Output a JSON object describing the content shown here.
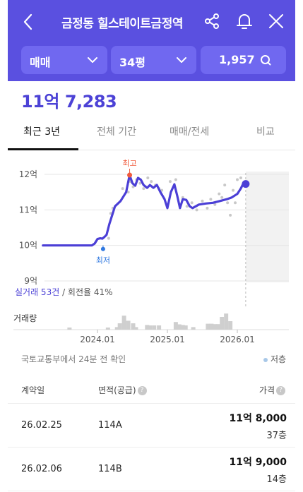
{
  "header": {
    "title": "금정동 힐스테이트금정역",
    "filters": {
      "trade_type": "매매",
      "size": "34평",
      "listings": "1,957"
    }
  },
  "price": "11억 7,283",
  "tabs": [
    "최근 3년",
    "전체 기간",
    "매매/전세",
    "비교"
  ],
  "chart_data": {
    "type": "line",
    "y_ticks": [
      "12억",
      "11억",
      "10억",
      "9억"
    ],
    "ylim": [
      9,
      12.3
    ],
    "x_ticks": [
      "2024.01",
      "2025.01",
      "2026.01"
    ],
    "series": [
      {
        "x": [
          2023.22,
          2023.5,
          2023.75,
          2023.92,
          2023.96,
          2024.0,
          2024.04,
          2024.07,
          2024.1,
          2024.13,
          2024.17,
          2024.25,
          2024.33,
          2024.41,
          2024.46,
          2024.5,
          2024.54,
          2024.58,
          2024.62,
          2024.66,
          2024.71,
          2024.75,
          2024.8,
          2024.85,
          2024.9,
          2024.96,
          2025.0,
          2025.05,
          2025.1,
          2025.14,
          2025.18,
          2025.22,
          2025.27,
          2025.32,
          2025.36,
          2025.45,
          2025.55,
          2025.65,
          2025.75,
          2025.85,
          2025.92,
          2026.0,
          2026.05,
          2026.08,
          2026.12
        ],
        "values": [
          10.0,
          10.0,
          10.0,
          10.0,
          10.05,
          10.18,
          10.2,
          10.19,
          10.24,
          10.3,
          10.6,
          11.1,
          11.25,
          11.5,
          11.98,
          11.75,
          11.68,
          11.9,
          11.85,
          11.7,
          11.62,
          11.7,
          11.62,
          11.7,
          11.5,
          11.3,
          11.05,
          11.5,
          11.72,
          11.4,
          11.05,
          11.3,
          11.28,
          11.1,
          11.05,
          11.15,
          11.18,
          11.2,
          11.25,
          11.3,
          11.35,
          11.45,
          11.6,
          11.72,
          11.73
        ]
      }
    ],
    "scatter": {
      "x": [
        2024.16,
        2024.19,
        2024.22,
        2024.36,
        2024.44,
        2024.47,
        2024.51,
        2024.56,
        2024.61,
        2024.66,
        2024.72,
        2024.77,
        2024.83,
        2024.88,
        2024.92,
        2025.04,
        2025.12,
        2025.22,
        2025.28,
        2025.35,
        2025.42,
        2025.5,
        2025.57,
        2025.62,
        2025.68,
        2025.74,
        2025.78,
        2025.82,
        2025.86,
        2025.9,
        2025.94,
        2025.97,
        2026.0,
        2026.05
      ],
      "y": [
        10.2,
        10.9,
        11.05,
        11.6,
        11.5,
        11.8,
        11.65,
        11.85,
        11.75,
        11.6,
        11.9,
        11.8,
        11.7,
        11.6,
        11.55,
        11.8,
        11.85,
        11.35,
        11.1,
        11.2,
        11.0,
        11.25,
        11.05,
        11.3,
        11.15,
        11.45,
        11.35,
        11.7,
        11.2,
        10.85,
        11.55,
        11.2,
        11.85,
        11.9
      ]
    },
    "max_label": "최고",
    "min_label": "최저",
    "max_point": [
      2024.46,
      11.98
    ],
    "min_point": [
      2024.08,
      9.9
    ],
    "current_point": [
      2026.12,
      11.73
    ],
    "stats": {
      "deals": "실거래 53건",
      "turnover": "/ 회전율 41%"
    },
    "volume_label": "거래량",
    "volume": [
      [
        2023.6,
        0.1
      ],
      [
        2024.15,
        0.1
      ],
      [
        2024.28,
        0.12
      ],
      [
        2024.32,
        0.3
      ],
      [
        2024.38,
        0.66
      ],
      [
        2024.44,
        0.42
      ],
      [
        2024.51,
        0.3
      ],
      [
        2024.55,
        0.12
      ],
      [
        2024.71,
        0.22
      ],
      [
        2024.75,
        0.2
      ],
      [
        2024.81,
        0.2
      ],
      [
        2024.88,
        0.2
      ],
      [
        2025.12,
        0.36
      ],
      [
        2025.17,
        0.25
      ],
      [
        2025.22,
        0.22
      ],
      [
        2025.26,
        0.2
      ],
      [
        2025.37,
        0.12
      ],
      [
        2025.58,
        0.28
      ],
      [
        2025.63,
        0.28
      ],
      [
        2025.68,
        0.26
      ],
      [
        2025.73,
        0.26
      ],
      [
        2025.78,
        0.6
      ],
      [
        2025.84,
        0.76
      ],
      [
        2025.9,
        0.4
      ]
    ]
  },
  "note": "국토교통부에서 24분 전 확인",
  "legend": "저층",
  "table": {
    "headers": {
      "date": "계약일",
      "area": "면적(공급)",
      "price": "가격"
    },
    "rows": [
      {
        "date": "26.02.25",
        "area": "114A",
        "price": "11억 8,000",
        "floor": "37층"
      },
      {
        "date": "26.02.06",
        "area": "114B",
        "price": "11억 9,000",
        "floor": "14층"
      }
    ]
  },
  "colors": {
    "brand": "#5a50e0",
    "accent": "#4c42d6",
    "max": "#f05a3c",
    "min": "#2f78e0"
  }
}
